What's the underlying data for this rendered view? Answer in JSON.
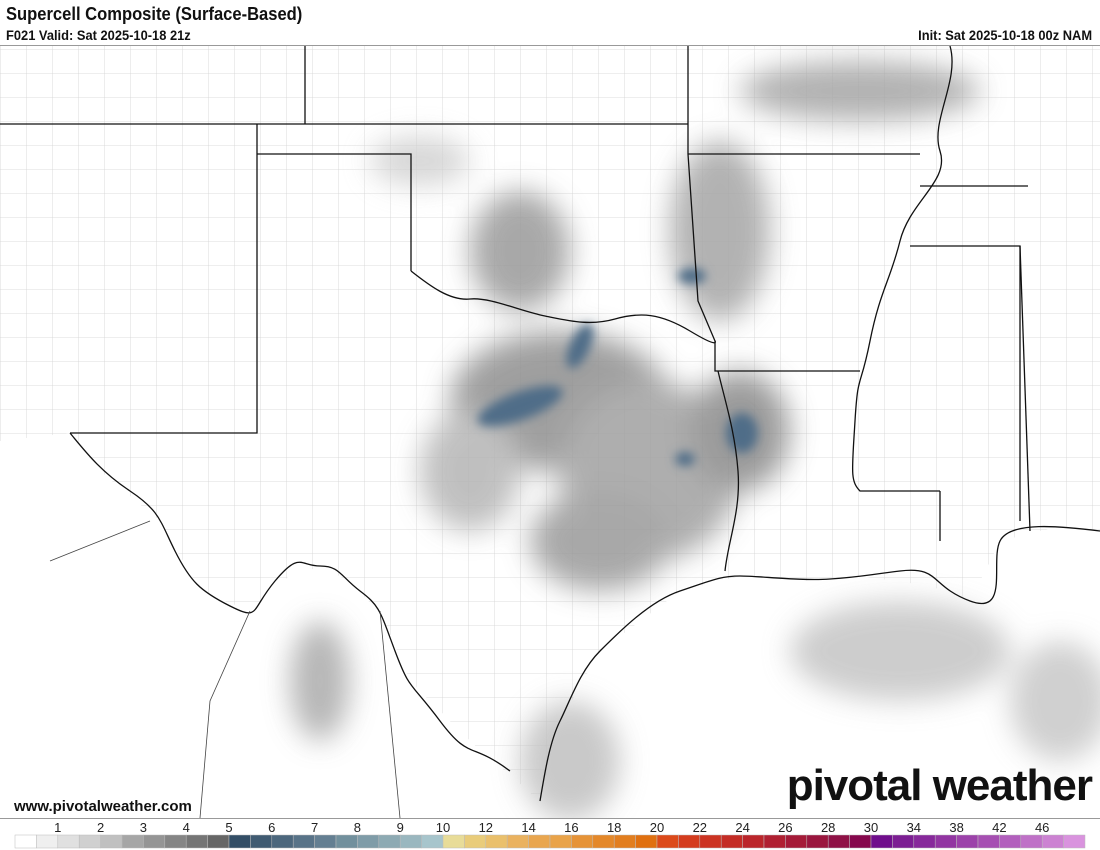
{
  "header": {
    "title": "Supercell Composite (Surface-Based)",
    "valid": "F021 Valid: Sat 2025-10-18 21z",
    "init": "Init: Sat 2025-10-18 00z NAM"
  },
  "footer": {
    "website": "www.pivotalweather.com",
    "logo_text": "pivotal weather"
  },
  "colors": {
    "county_lines": "#d6d6d6",
    "state_lines": "#111111",
    "water": "#ffffff",
    "land": "#ffffff"
  },
  "colorbar": {
    "labels": [
      {
        "cell": 2,
        "text": "1"
      },
      {
        "cell": 4,
        "text": "2"
      },
      {
        "cell": 6,
        "text": "3"
      },
      {
        "cell": 8,
        "text": "4"
      },
      {
        "cell": 10,
        "text": "5"
      },
      {
        "cell": 12,
        "text": "6"
      },
      {
        "cell": 14,
        "text": "7"
      },
      {
        "cell": 16,
        "text": "8"
      },
      {
        "cell": 18,
        "text": "9"
      },
      {
        "cell": 20,
        "text": "10"
      },
      {
        "cell": 22,
        "text": "12"
      },
      {
        "cell": 24,
        "text": "14"
      },
      {
        "cell": 26,
        "text": "16"
      },
      {
        "cell": 28,
        "text": "18"
      },
      {
        "cell": 30,
        "text": "20"
      },
      {
        "cell": 32,
        "text": "22"
      },
      {
        "cell": 34,
        "text": "24"
      },
      {
        "cell": 36,
        "text": "26"
      },
      {
        "cell": 38,
        "text": "28"
      },
      {
        "cell": 40,
        "text": "30"
      },
      {
        "cell": 42,
        "text": "34"
      },
      {
        "cell": 44,
        "text": "38"
      },
      {
        "cell": 46,
        "text": "42"
      },
      {
        "cell": 48,
        "text": "46"
      }
    ],
    "colors": [
      "#ffffff",
      "#efefef",
      "#e0e0e0",
      "#d0d0d0",
      "#c0c0c0",
      "#a6a6a6",
      "#959595",
      "#858585",
      "#757575",
      "#666666",
      "#334e66",
      "#405b72",
      "#4c677d",
      "#587388",
      "#647f92",
      "#72909d",
      "#7f9ca8",
      "#8daab3",
      "#9ab7bf",
      "#a7c5cc",
      "#e8dc98",
      "#e9cc7a",
      "#eac06c",
      "#eab25f",
      "#e9a64f",
      "#e9a349",
      "#e69337",
      "#e4882a",
      "#e27e1f",
      "#e07010",
      "#dc4a1a",
      "#d43c1e",
      "#cc3322",
      "#c42d26",
      "#bb262b",
      "#b02032",
      "#a51b38",
      "#9a163e",
      "#8f1146",
      "#86084d",
      "#700e8c",
      "#7c1e93",
      "#87299b",
      "#9235a2",
      "#9c42aa",
      "#a64fb2",
      "#b25fbd",
      "#bf71c7",
      "#cc82d2",
      "#d993de"
    ]
  }
}
